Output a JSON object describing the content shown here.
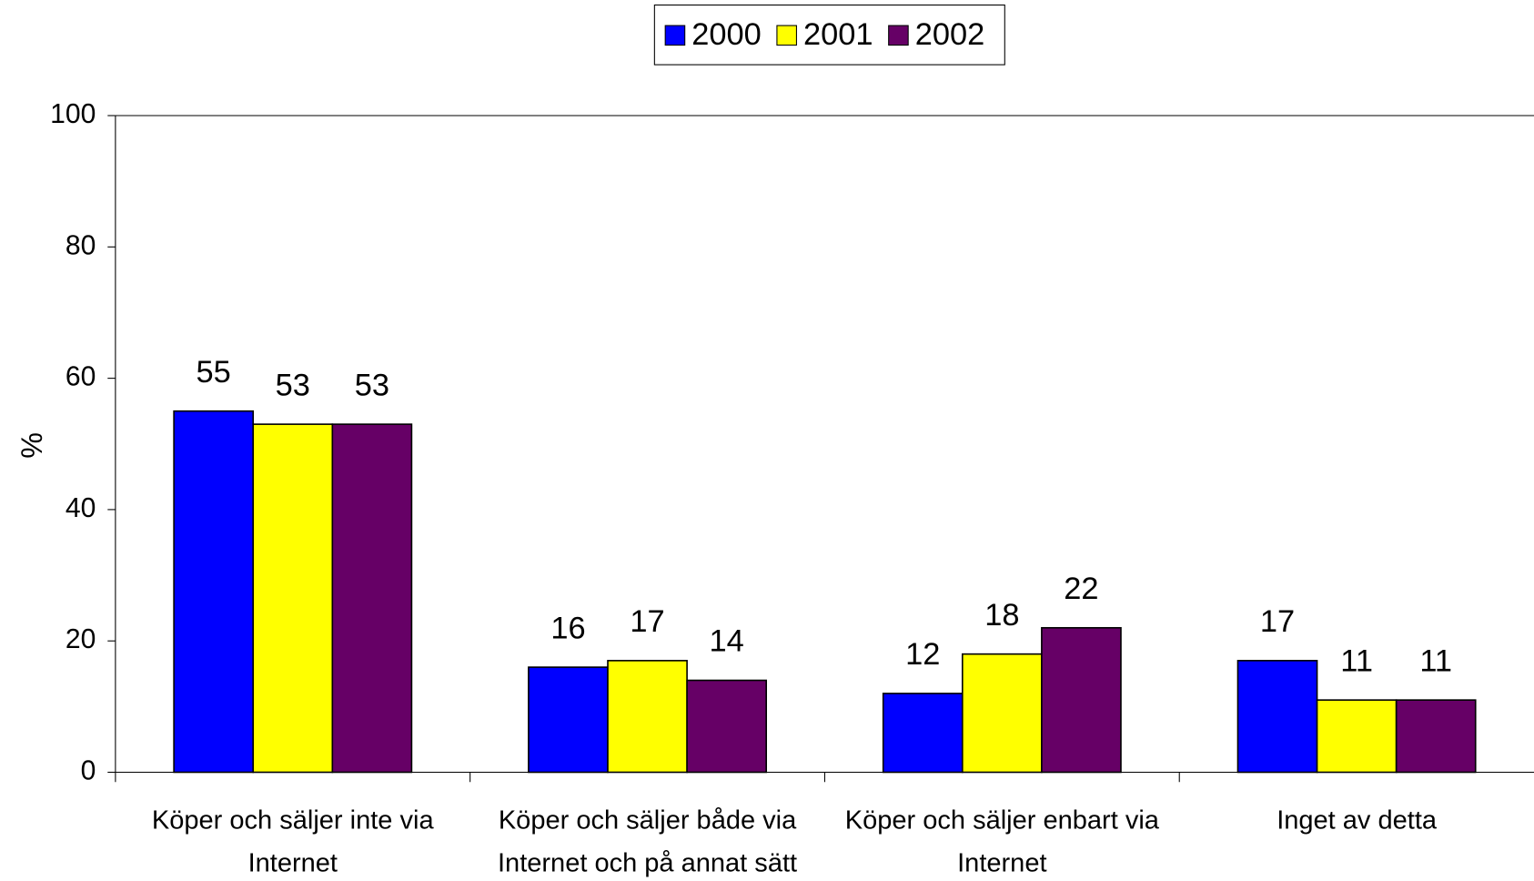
{
  "chart_data": {
    "type": "bar",
    "categories": [
      "Köper och säljer inte via Internet",
      "Köper och säljer både via Internet och på annat sätt",
      "Köper och säljer enbart via Internet",
      "Inget av detta"
    ],
    "series": [
      {
        "name": "2000",
        "color": "#0000ff",
        "values": [
          55,
          16,
          12,
          17
        ]
      },
      {
        "name": "2001",
        "color": "#ffff00",
        "values": [
          53,
          17,
          18,
          11
        ]
      },
      {
        "name": "2002",
        "color": "#660066",
        "values": [
          53,
          14,
          22,
          11
        ]
      }
    ],
    "ylabel": "%",
    "ylim": [
      0,
      100
    ],
    "yticks": [
      0,
      20,
      40,
      60,
      80,
      100
    ],
    "legend": "top"
  }
}
